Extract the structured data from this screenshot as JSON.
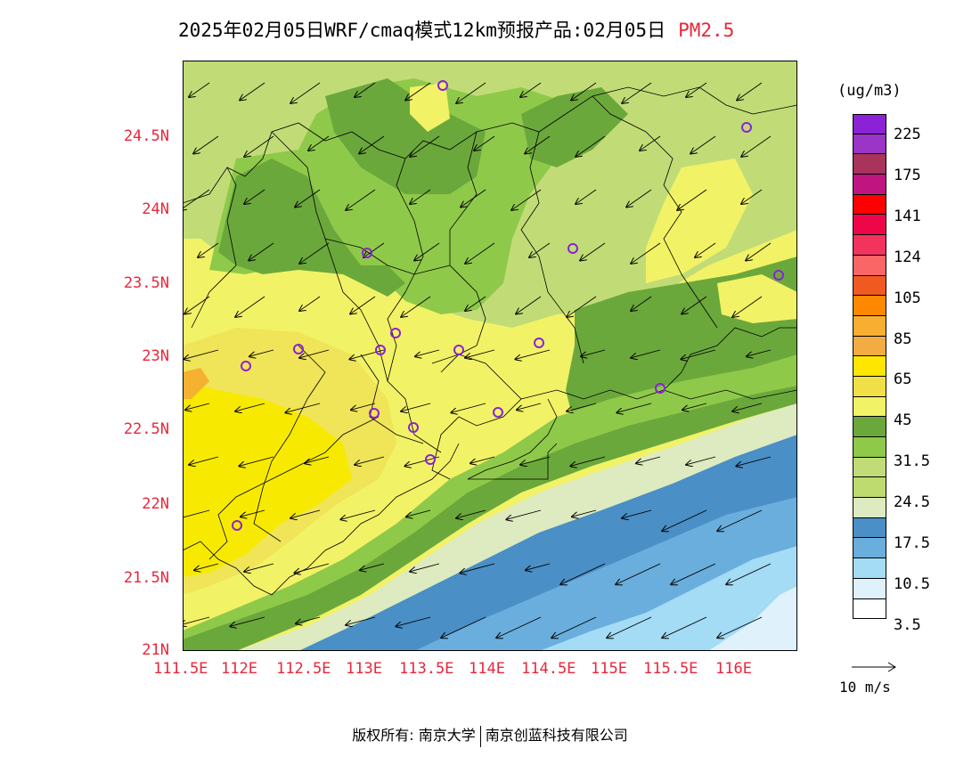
{
  "title": {
    "text": "2025年02月05日WRF/cmaq模式12km预报产品:02月05日",
    "pollutant": "PM2.5"
  },
  "map": {
    "lat_ticks": [
      "21N",
      "21.5N",
      "22N",
      "22.5N",
      "23N",
      "23.5N",
      "24N",
      "24.5N"
    ],
    "lon_ticks": [
      "111.5E",
      "112E",
      "112.5E",
      "113E",
      "113.5E",
      "114E",
      "114.5E",
      "115E",
      "115.5E",
      "116E"
    ],
    "colors": {
      "c3": "#dff1fb",
      "c10": "#a4dbf5",
      "c17_low": "#6aaedd",
      "c17": "#4a8fc6",
      "c24_low": "#deeabf",
      "c24": "#c1dc76",
      "c31_low": "#8fc94a",
      "c31": "#6ba83b",
      "c45": "#f2f266",
      "c45_high": "#f0e458",
      "c65": "#f7ea00",
      "c85": "#f4b230"
    },
    "wind_ref": {
      "speed_label": "10 m/s"
    }
  },
  "legend": {
    "unit": "(ug/m3)",
    "bins": [
      {
        "color": "#8b22d5"
      },
      {
        "color": "#9b35c7"
      },
      {
        "color": "#a8335c"
      },
      {
        "color": "#c01580"
      },
      {
        "color": "#ff0000"
      },
      {
        "color": "#ef0648"
      },
      {
        "color": "#f2345c"
      },
      {
        "color": "#fa6565"
      },
      {
        "color": "#f05a20"
      },
      {
        "color": "#fe8800"
      },
      {
        "color": "#f8ae30"
      },
      {
        "color": "#f2ac41"
      },
      {
        "color": "#ffe600"
      },
      {
        "color": "#f0e045"
      },
      {
        "color": "#f2f266"
      },
      {
        "color": "#6ba83b"
      },
      {
        "color": "#8fc94a"
      },
      {
        "color": "#c1dc76"
      },
      {
        "color": "#bedb6f"
      },
      {
        "color": "#deeabf"
      },
      {
        "color": "#4a8fc6"
      },
      {
        "color": "#6aaedd"
      },
      {
        "color": "#a4dbf5"
      },
      {
        "color": "#dff1fb"
      },
      {
        "color": "#ffffff"
      }
    ],
    "labels": [
      "225",
      "175",
      "141",
      "124",
      "105",
      "85",
      "65",
      "45",
      "31.5",
      "24.5",
      "17.5",
      "10.5",
      "3.5"
    ]
  },
  "footer": {
    "left": "版权所有: 南京大学",
    "right": "南京创蓝科技有限公司"
  }
}
